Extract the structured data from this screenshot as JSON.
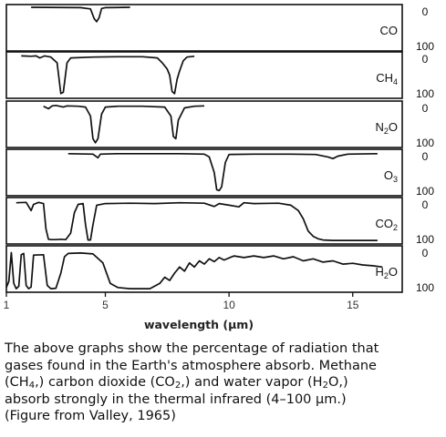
{
  "chart_data": {
    "type": "line",
    "title": "",
    "xlabel": "wavelength (μm)",
    "ylabel": "",
    "xlim": [
      1,
      17
    ],
    "x_ticks": [
      1,
      5,
      10,
      15
    ],
    "x_tick_labels": [
      "1",
      "5",
      "10",
      "15"
    ],
    "ylim": [
      0,
      100
    ],
    "y_ticks": [
      0,
      100
    ],
    "y_tick_labels": [
      "0",
      "100"
    ],
    "grid": false,
    "legend": "none",
    "panels": [
      {
        "label_main": "CO",
        "label_sub": "",
        "points": [
          [
            2.0,
            0
          ],
          [
            4.0,
            1
          ],
          [
            4.4,
            4
          ],
          [
            4.55,
            28
          ],
          [
            4.65,
            35
          ],
          [
            4.75,
            25
          ],
          [
            4.85,
            3
          ],
          [
            5.0,
            1
          ],
          [
            6.0,
            0
          ]
        ]
      },
      {
        "label_main": "CH",
        "label_sub": "4",
        "points": [
          [
            1.6,
            3
          ],
          [
            2.0,
            4
          ],
          [
            2.2,
            3
          ],
          [
            2.35,
            8
          ],
          [
            2.55,
            3
          ],
          [
            2.8,
            6
          ],
          [
            3.05,
            20
          ],
          [
            3.2,
            95
          ],
          [
            3.3,
            92
          ],
          [
            3.45,
            20
          ],
          [
            3.6,
            8
          ],
          [
            4.5,
            6
          ],
          [
            5.5,
            5
          ],
          [
            6.5,
            5
          ],
          [
            7.1,
            8
          ],
          [
            7.3,
            20
          ],
          [
            7.5,
            35
          ],
          [
            7.6,
            50
          ],
          [
            7.7,
            90
          ],
          [
            7.8,
            95
          ],
          [
            7.9,
            60
          ],
          [
            8.0,
            40
          ],
          [
            8.15,
            15
          ],
          [
            8.3,
            6
          ],
          [
            8.6,
            4
          ]
        ]
      },
      {
        "label_main": "N",
        "label_sub": "2",
        "label_tail": "O",
        "points": [
          [
            2.5,
            6
          ],
          [
            2.7,
            12
          ],
          [
            2.85,
            5
          ],
          [
            3.0,
            4
          ],
          [
            3.3,
            8
          ],
          [
            3.45,
            5
          ],
          [
            3.9,
            6
          ],
          [
            4.2,
            8
          ],
          [
            4.4,
            30
          ],
          [
            4.5,
            85
          ],
          [
            4.6,
            95
          ],
          [
            4.7,
            85
          ],
          [
            4.85,
            25
          ],
          [
            5.0,
            8
          ],
          [
            5.5,
            6
          ],
          [
            6.5,
            6
          ],
          [
            7.4,
            8
          ],
          [
            7.65,
            30
          ],
          [
            7.75,
            80
          ],
          [
            7.85,
            85
          ],
          [
            7.95,
            40
          ],
          [
            8.2,
            10
          ],
          [
            8.6,
            6
          ],
          [
            9.0,
            5
          ]
        ]
      },
      {
        "label_main": "O",
        "label_sub": "3",
        "points": [
          [
            3.5,
            4
          ],
          [
            4.5,
            5
          ],
          [
            4.7,
            14
          ],
          [
            4.8,
            5
          ],
          [
            5.5,
            4
          ],
          [
            8.0,
            4
          ],
          [
            9.0,
            5
          ],
          [
            9.2,
            12
          ],
          [
            9.4,
            50
          ],
          [
            9.5,
            92
          ],
          [
            9.6,
            94
          ],
          [
            9.7,
            85
          ],
          [
            9.85,
            25
          ],
          [
            10.0,
            6
          ],
          [
            11.0,
            5
          ],
          [
            12.5,
            5
          ],
          [
            13.5,
            6
          ],
          [
            14.0,
            12
          ],
          [
            14.2,
            16
          ],
          [
            14.4,
            10
          ],
          [
            14.8,
            5
          ],
          [
            16.0,
            4
          ]
        ]
      },
      {
        "label_main": "CO",
        "label_sub": "2",
        "points": [
          [
            1.4,
            6
          ],
          [
            1.8,
            5
          ],
          [
            2.0,
            25
          ],
          [
            2.1,
            10
          ],
          [
            2.3,
            5
          ],
          [
            2.5,
            8
          ],
          [
            2.6,
            70
          ],
          [
            2.7,
            95
          ],
          [
            2.8,
            96
          ],
          [
            3.0,
            96
          ],
          [
            3.2,
            95
          ],
          [
            3.4,
            96
          ],
          [
            3.6,
            80
          ],
          [
            3.75,
            30
          ],
          [
            3.9,
            10
          ],
          [
            4.1,
            8
          ],
          [
            4.2,
            60
          ],
          [
            4.3,
            97
          ],
          [
            4.4,
            97
          ],
          [
            4.5,
            60
          ],
          [
            4.65,
            12
          ],
          [
            5.0,
            8
          ],
          [
            6.0,
            7
          ],
          [
            7.0,
            8
          ],
          [
            8.0,
            6
          ],
          [
            9.0,
            7
          ],
          [
            9.4,
            15
          ],
          [
            9.6,
            8
          ],
          [
            10.4,
            16
          ],
          [
            10.6,
            6
          ],
          [
            11.0,
            8
          ],
          [
            12.0,
            7
          ],
          [
            12.5,
            12
          ],
          [
            12.8,
            25
          ],
          [
            13.0,
            45
          ],
          [
            13.2,
            75
          ],
          [
            13.4,
            88
          ],
          [
            13.6,
            94
          ],
          [
            13.8,
            97
          ],
          [
            14.2,
            98
          ],
          [
            15.0,
            98
          ],
          [
            16.0,
            98
          ]
        ]
      },
      {
        "label_main": "H",
        "label_sub": "2",
        "label_tail": "O",
        "points": [
          [
            1.0,
            95
          ],
          [
            1.1,
            80
          ],
          [
            1.2,
            10
          ],
          [
            1.3,
            85
          ],
          [
            1.4,
            98
          ],
          [
            1.5,
            92
          ],
          [
            1.6,
            15
          ],
          [
            1.7,
            12
          ],
          [
            1.8,
            90
          ],
          [
            1.9,
            98
          ],
          [
            2.0,
            94
          ],
          [
            2.1,
            16
          ],
          [
            2.5,
            15
          ],
          [
            2.65,
            90
          ],
          [
            2.8,
            98
          ],
          [
            3.0,
            97
          ],
          [
            3.2,
            60
          ],
          [
            3.35,
            20
          ],
          [
            3.5,
            12
          ],
          [
            4.0,
            11
          ],
          [
            4.5,
            13
          ],
          [
            4.9,
            35
          ],
          [
            5.2,
            85
          ],
          [
            5.5,
            95
          ],
          [
            6.0,
            98
          ],
          [
            6.8,
            98
          ],
          [
            7.2,
            85
          ],
          [
            7.4,
            70
          ],
          [
            7.6,
            78
          ],
          [
            7.8,
            60
          ],
          [
            8.0,
            45
          ],
          [
            8.2,
            55
          ],
          [
            8.4,
            35
          ],
          [
            8.6,
            45
          ],
          [
            8.8,
            30
          ],
          [
            9.0,
            38
          ],
          [
            9.2,
            25
          ],
          [
            9.4,
            32
          ],
          [
            9.6,
            22
          ],
          [
            9.8,
            28
          ],
          [
            10.2,
            18
          ],
          [
            10.6,
            22
          ],
          [
            11.0,
            18
          ],
          [
            11.4,
            22
          ],
          [
            11.8,
            18
          ],
          [
            12.2,
            25
          ],
          [
            12.6,
            20
          ],
          [
            13.0,
            30
          ],
          [
            13.4,
            25
          ],
          [
            13.8,
            33
          ],
          [
            14.2,
            30
          ],
          [
            14.6,
            38
          ],
          [
            15.0,
            36
          ],
          [
            15.4,
            40
          ],
          [
            15.8,
            42
          ],
          [
            16.2,
            45
          ]
        ]
      }
    ]
  },
  "caption": {
    "line1": "The above graphs show the percentage of radiation that",
    "line2": "gases found in the Earth's atmosphere absorb. Methane",
    "line3_a": "(CH",
    "line3_sub1": "4",
    "line3_b": ",) carbon dioxide (CO",
    "line3_sub2": "2",
    "line3_c": ",) and water vapor (H",
    "line3_sub3": "2",
    "line3_d": "O,)",
    "line4": "absorb strongly in the thermal infrared (4–100 μm.)",
    "line5": "(Figure from Valley, 1965)"
  }
}
